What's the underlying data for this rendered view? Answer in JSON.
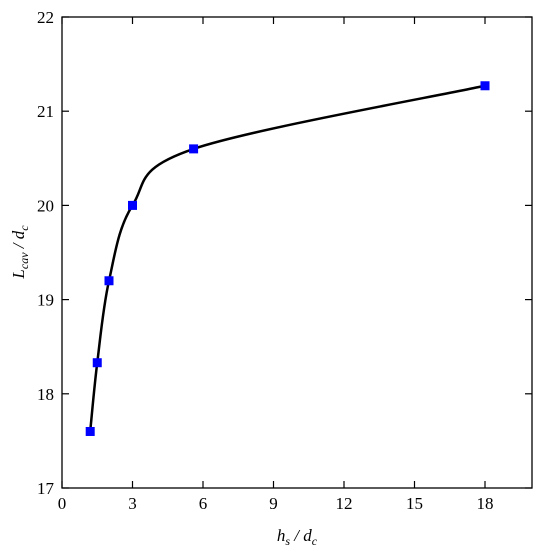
{
  "chart_data": {
    "type": "line",
    "xlabel": [
      "h",
      "s",
      " / d",
      "c"
    ],
    "ylabel": [
      "L",
      "cav",
      " / d",
      "c"
    ],
    "x": [
      1.2,
      1.5,
      2,
      3,
      5.6,
      18
    ],
    "values": [
      17.6,
      18.33,
      19.2,
      20.0,
      20.6,
      21.27
    ],
    "color": "#0000ff",
    "line_color": "#000000",
    "xlim": [
      0,
      20
    ],
    "xticks": [
      0,
      3,
      6,
      9,
      12,
      15,
      18
    ],
    "ylim": [
      17,
      22
    ],
    "yticks": [
      17,
      18,
      19,
      20,
      21,
      22
    ]
  }
}
